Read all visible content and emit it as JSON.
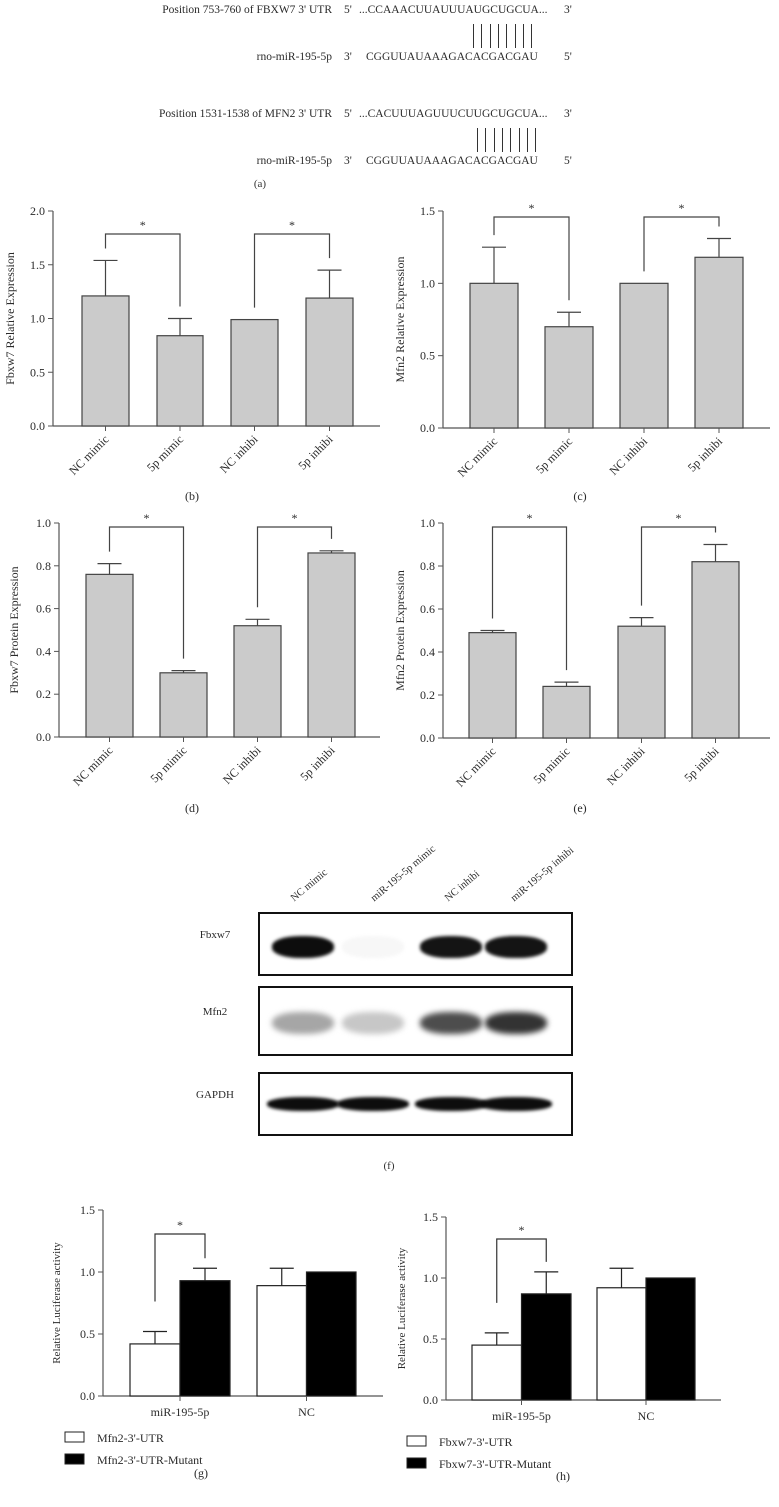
{
  "panel_a": {
    "label": "(a)",
    "rows": [
      {
        "name": "Position 753-760 of FBXW7 3' UTR",
        "left_end": "5'",
        "sequence": "...CCAAACUUAUUUAUGCUGCUA...",
        "right_end": "3'"
      },
      {
        "name": "rno-miR-195-5p",
        "left_end": "3'",
        "sequence": "CGGUUAUAAAGACACGACGAU",
        "right_end": "5'"
      },
      {
        "name": "Position 1531-1538 of MFN2 3' UTR",
        "left_end": "5'",
        "sequence": "...CACUUUAGUUUCUUGCUGCUA...",
        "right_end": "3'"
      },
      {
        "name": "rno-miR-195-5p",
        "left_end": "3'",
        "sequence": "CGGUUAUAAAGACACGACGAU",
        "right_end": "5'"
      }
    ],
    "pairing_lines": 8
  },
  "panel_f": {
    "label": "(f)",
    "lanes": [
      "NC mimic",
      "miR-195-5p mimic",
      "NC inhibi",
      "miR-195-5p inhibi"
    ],
    "blots": [
      {
        "name": "Fbxw7",
        "intensity": [
          0.95,
          0.03,
          0.92,
          0.92
        ]
      },
      {
        "name": "Mfn2",
        "intensity": [
          0.35,
          0.22,
          0.7,
          0.8
        ]
      },
      {
        "name": "GAPDH",
        "intensity": [
          0.95,
          0.95,
          0.95,
          0.95
        ]
      }
    ]
  },
  "colors": {
    "bar_gray": "#cbcbcb",
    "axis": "#555555",
    "black_bar": "#000000"
  },
  "chart_data": [
    {
      "id": "b",
      "panel_label": "(b)",
      "type": "bar",
      "title": "",
      "xlabel": "",
      "ylabel": "Fbxw7 Relative Expression",
      "categories": [
        "NC mimic",
        "5p mimic",
        "NC inhibi",
        "5p inhibi"
      ],
      "values": [
        1.21,
        0.84,
        0.99,
        1.19
      ],
      "errors": [
        0.33,
        0.16,
        0.0,
        0.26
      ],
      "ylim": [
        0,
        2.0
      ],
      "yticks": [
        "0.0",
        "0.5",
        "1.0",
        "1.5",
        "2.0"
      ],
      "significance": [
        {
          "from": 0,
          "to": 1,
          "label": "*"
        },
        {
          "from": 2,
          "to": 3,
          "label": "*"
        }
      ],
      "grid": false
    },
    {
      "id": "c",
      "panel_label": "(c)",
      "type": "bar",
      "title": "",
      "xlabel": "",
      "ylabel": "Mfn2 Relative Expression",
      "categories": [
        "NC mimic",
        "5p mimic",
        "NC inhibi",
        "5p inhibi"
      ],
      "values": [
        1.0,
        0.7,
        1.0,
        1.18
      ],
      "errors": [
        0.25,
        0.1,
        0.0,
        0.13
      ],
      "ylim": [
        0,
        1.5
      ],
      "yticks": [
        "0.0",
        "0.5",
        "1.0",
        "1.5"
      ],
      "significance": [
        {
          "from": 0,
          "to": 1,
          "label": "*"
        },
        {
          "from": 2,
          "to": 3,
          "label": "*"
        }
      ],
      "grid": false
    },
    {
      "id": "d",
      "panel_label": "(d)",
      "type": "bar",
      "title": "",
      "xlabel": "",
      "ylabel": "Fbxw7 Protein Expression",
      "categories": [
        "NC mimic",
        "5p mimic",
        "NC inhibi",
        "5p inhibi"
      ],
      "values": [
        0.76,
        0.3,
        0.52,
        0.86
      ],
      "errors": [
        0.05,
        0.01,
        0.03,
        0.01
      ],
      "ylim": [
        0,
        1.0
      ],
      "yticks": [
        "0.0",
        "0.2",
        "0.4",
        "0.6",
        "0.8",
        "1.0"
      ],
      "significance": [
        {
          "from": 0,
          "to": 1,
          "label": "*"
        },
        {
          "from": 2,
          "to": 3,
          "label": "*"
        }
      ],
      "grid": false
    },
    {
      "id": "e",
      "panel_label": "(e)",
      "type": "bar",
      "title": "",
      "xlabel": "",
      "ylabel": "Mfn2 Protein Expression",
      "categories": [
        "NC mimic",
        "5p mimic",
        "NC inhibi",
        "5p inhibi"
      ],
      "values": [
        0.49,
        0.24,
        0.52,
        0.82
      ],
      "errors": [
        0.01,
        0.02,
        0.04,
        0.08
      ],
      "ylim": [
        0,
        1.0
      ],
      "yticks": [
        "0.0",
        "0.2",
        "0.4",
        "0.6",
        "0.8",
        "1.0"
      ],
      "significance": [
        {
          "from": 0,
          "to": 1,
          "label": "*"
        },
        {
          "from": 2,
          "to": 3,
          "label": "*"
        }
      ],
      "grid": false
    },
    {
      "id": "g",
      "panel_label": "(g)",
      "type": "bar",
      "title": "",
      "xlabel": "",
      "ylabel": "Relative Luciferase activity",
      "categories": [
        "miR-195-5p",
        "NC"
      ],
      "series": [
        {
          "name": "Mfn2-3'-UTR",
          "fill": "white",
          "values": [
            0.42,
            0.89
          ],
          "errors": [
            0.1,
            0.14
          ]
        },
        {
          "name": "Mfn2-3'-UTR-Mutant",
          "fill": "black",
          "values": [
            0.93,
            1.0
          ],
          "errors": [
            0.1,
            0.0
          ]
        }
      ],
      "ylim": [
        0,
        1.5
      ],
      "yticks": [
        "0.0",
        "0.5",
        "1.0",
        "1.5"
      ],
      "significance": [
        {
          "group": 0,
          "label": "*"
        }
      ],
      "legend_position": "bottom-left",
      "grid": false
    },
    {
      "id": "h",
      "panel_label": "(h)",
      "type": "bar",
      "title": "",
      "xlabel": "",
      "ylabel": "Relative Luciferase activity",
      "categories": [
        "miR-195-5p",
        "NC"
      ],
      "series": [
        {
          "name": "Fbxw7-3'-UTR",
          "fill": "white",
          "values": [
            0.45,
            0.92
          ],
          "errors": [
            0.1,
            0.16
          ]
        },
        {
          "name": "Fbxw7-3'-UTR-Mutant",
          "fill": "black",
          "values": [
            0.87,
            1.0
          ],
          "errors": [
            0.18,
            0.0
          ]
        }
      ],
      "ylim": [
        0,
        1.5
      ],
      "yticks": [
        "0.0",
        "0.5",
        "1.0",
        "1.5"
      ],
      "significance": [
        {
          "group": 0,
          "label": "*"
        }
      ],
      "legend_position": "bottom-left",
      "grid": false
    }
  ]
}
